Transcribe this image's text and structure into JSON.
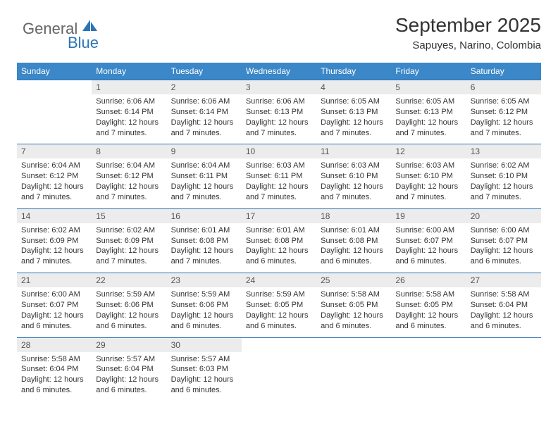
{
  "brand": {
    "general": "General",
    "blue": "Blue",
    "shape_color": "#2b74b8",
    "general_color": "#646464",
    "blue_color": "#2b74b8"
  },
  "header": {
    "title": "September 2025",
    "location": "Sapuyes, Narino, Colombia"
  },
  "calendar": {
    "header_bg": "#3b87c8",
    "header_text_color": "#ffffff",
    "day_number_bg": "#ececec",
    "row_border_color": "#2b74b8",
    "body_text_color": "#333333",
    "font_size_header": 12,
    "font_size_daynum": 12,
    "font_size_content": 11,
    "days_of_week": [
      "Sunday",
      "Monday",
      "Tuesday",
      "Wednesday",
      "Thursday",
      "Friday",
      "Saturday"
    ],
    "first_weekday_index": 1,
    "days": [
      {
        "n": 1,
        "sunrise": "6:06 AM",
        "sunset": "6:14 PM",
        "daylight": "12 hours and 7 minutes."
      },
      {
        "n": 2,
        "sunrise": "6:06 AM",
        "sunset": "6:14 PM",
        "daylight": "12 hours and 7 minutes."
      },
      {
        "n": 3,
        "sunrise": "6:06 AM",
        "sunset": "6:13 PM",
        "daylight": "12 hours and 7 minutes."
      },
      {
        "n": 4,
        "sunrise": "6:05 AM",
        "sunset": "6:13 PM",
        "daylight": "12 hours and 7 minutes."
      },
      {
        "n": 5,
        "sunrise": "6:05 AM",
        "sunset": "6:13 PM",
        "daylight": "12 hours and 7 minutes."
      },
      {
        "n": 6,
        "sunrise": "6:05 AM",
        "sunset": "6:12 PM",
        "daylight": "12 hours and 7 minutes."
      },
      {
        "n": 7,
        "sunrise": "6:04 AM",
        "sunset": "6:12 PM",
        "daylight": "12 hours and 7 minutes."
      },
      {
        "n": 8,
        "sunrise": "6:04 AM",
        "sunset": "6:12 PM",
        "daylight": "12 hours and 7 minutes."
      },
      {
        "n": 9,
        "sunrise": "6:04 AM",
        "sunset": "6:11 PM",
        "daylight": "12 hours and 7 minutes."
      },
      {
        "n": 10,
        "sunrise": "6:03 AM",
        "sunset": "6:11 PM",
        "daylight": "12 hours and 7 minutes."
      },
      {
        "n": 11,
        "sunrise": "6:03 AM",
        "sunset": "6:10 PM",
        "daylight": "12 hours and 7 minutes."
      },
      {
        "n": 12,
        "sunrise": "6:03 AM",
        "sunset": "6:10 PM",
        "daylight": "12 hours and 7 minutes."
      },
      {
        "n": 13,
        "sunrise": "6:02 AM",
        "sunset": "6:10 PM",
        "daylight": "12 hours and 7 minutes."
      },
      {
        "n": 14,
        "sunrise": "6:02 AM",
        "sunset": "6:09 PM",
        "daylight": "12 hours and 7 minutes."
      },
      {
        "n": 15,
        "sunrise": "6:02 AM",
        "sunset": "6:09 PM",
        "daylight": "12 hours and 7 minutes."
      },
      {
        "n": 16,
        "sunrise": "6:01 AM",
        "sunset": "6:08 PM",
        "daylight": "12 hours and 7 minutes."
      },
      {
        "n": 17,
        "sunrise": "6:01 AM",
        "sunset": "6:08 PM",
        "daylight": "12 hours and 6 minutes."
      },
      {
        "n": 18,
        "sunrise": "6:01 AM",
        "sunset": "6:08 PM",
        "daylight": "12 hours and 6 minutes."
      },
      {
        "n": 19,
        "sunrise": "6:00 AM",
        "sunset": "6:07 PM",
        "daylight": "12 hours and 6 minutes."
      },
      {
        "n": 20,
        "sunrise": "6:00 AM",
        "sunset": "6:07 PM",
        "daylight": "12 hours and 6 minutes."
      },
      {
        "n": 21,
        "sunrise": "6:00 AM",
        "sunset": "6:07 PM",
        "daylight": "12 hours and 6 minutes."
      },
      {
        "n": 22,
        "sunrise": "5:59 AM",
        "sunset": "6:06 PM",
        "daylight": "12 hours and 6 minutes."
      },
      {
        "n": 23,
        "sunrise": "5:59 AM",
        "sunset": "6:06 PM",
        "daylight": "12 hours and 6 minutes."
      },
      {
        "n": 24,
        "sunrise": "5:59 AM",
        "sunset": "6:05 PM",
        "daylight": "12 hours and 6 minutes."
      },
      {
        "n": 25,
        "sunrise": "5:58 AM",
        "sunset": "6:05 PM",
        "daylight": "12 hours and 6 minutes."
      },
      {
        "n": 26,
        "sunrise": "5:58 AM",
        "sunset": "6:05 PM",
        "daylight": "12 hours and 6 minutes."
      },
      {
        "n": 27,
        "sunrise": "5:58 AM",
        "sunset": "6:04 PM",
        "daylight": "12 hours and 6 minutes."
      },
      {
        "n": 28,
        "sunrise": "5:58 AM",
        "sunset": "6:04 PM",
        "daylight": "12 hours and 6 minutes."
      },
      {
        "n": 29,
        "sunrise": "5:57 AM",
        "sunset": "6:04 PM",
        "daylight": "12 hours and 6 minutes."
      },
      {
        "n": 30,
        "sunrise": "5:57 AM",
        "sunset": "6:03 PM",
        "daylight": "12 hours and 6 minutes."
      }
    ],
    "labels": {
      "sunrise": "Sunrise:",
      "sunset": "Sunset:",
      "daylight": "Daylight:"
    }
  }
}
